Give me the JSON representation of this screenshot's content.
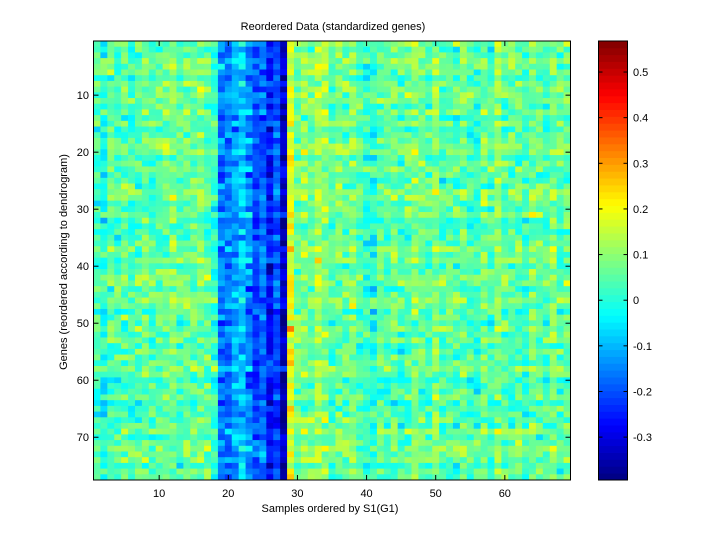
{
  "chart_data": {
    "type": "heatmap",
    "title": "Reordered Data (standardized genes)",
    "xlabel": "Samples ordered by S1(G1)",
    "ylabel": "Genes (reordered according to dendrogram)",
    "n_columns": 69,
    "n_rows": 77,
    "xlim": [
      0.5,
      69.5
    ],
    "ylim": [
      0.5,
      77.5
    ],
    "x_ticks": [
      10,
      20,
      30,
      40,
      50,
      60
    ],
    "y_ticks": [
      10,
      20,
      30,
      40,
      50,
      60,
      70
    ],
    "colormap": "jet",
    "color_range": [
      -0.394,
      0.568
    ],
    "colorbar_ticks": [
      0.5,
      0.4,
      0.3,
      0.2,
      0.1,
      0,
      -0.1,
      -0.2,
      -0.3
    ],
    "column_mean_profile": [
      0.03,
      0.0,
      0.05,
      0.04,
      0.06,
      0.03,
      0.05,
      0.07,
      0.04,
      0.05,
      0.06,
      0.08,
      0.05,
      0.07,
      0.06,
      0.08,
      0.06,
      0.02,
      -0.15,
      -0.16,
      -0.12,
      -0.08,
      -0.14,
      -0.2,
      -0.18,
      -0.26,
      -0.2,
      -0.34,
      0.2,
      0.08,
      0.1,
      0.06,
      0.12,
      0.1,
      0.04,
      0.08,
      0.07,
      0.09,
      0.04,
      0.02,
      0.0,
      0.06,
      0.05,
      0.08,
      0.03,
      0.06,
      0.09,
      0.07,
      0.05,
      0.1,
      0.04,
      0.06,
      0.05,
      0.07,
      0.03,
      0.02,
      0.08,
      0.04,
      0.1,
      0.06,
      0.05,
      0.07,
      0.03,
      0.08,
      0.06,
      0.04,
      0.09,
      0.05,
      0.07
    ]
  }
}
